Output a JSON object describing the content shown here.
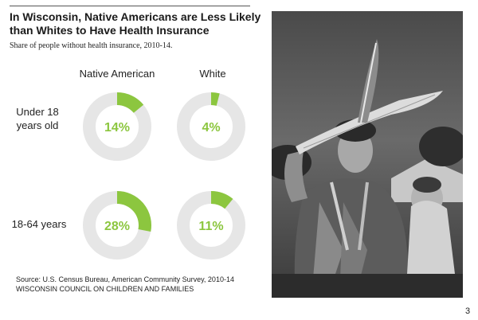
{
  "chart_data": {
    "type": "donut",
    "title": "In Wisconsin, Native Americans are Less Likely than Whites to Have Health Insurance",
    "subtitle": "Share of people without health insurance, 2010-14.",
    "columns": [
      "Native American",
      "White"
    ],
    "rows": [
      "Under 18 years old",
      "18-64 years"
    ],
    "values": [
      [
        14,
        4
      ],
      [
        28,
        11
      ]
    ],
    "value_labels": [
      [
        "14%",
        "4%"
      ],
      [
        "28%",
        "11%"
      ]
    ],
    "unit": "%",
    "max": 100,
    "colors": {
      "filled": "#8cc63f",
      "track": "#e6e6e6",
      "label": "#8cc63f"
    }
  },
  "source": {
    "line1": "Source: U.S. Census Bureau, American Community Survey, 2010-14",
    "line2": "WISCONSIN COUNCIL ON CHILDREN AND FAMILIES"
  },
  "photo": {
    "description_icon": "photo-of-native-american-woman-with-feather-fan-holding-child"
  },
  "page": {
    "number": "3"
  }
}
